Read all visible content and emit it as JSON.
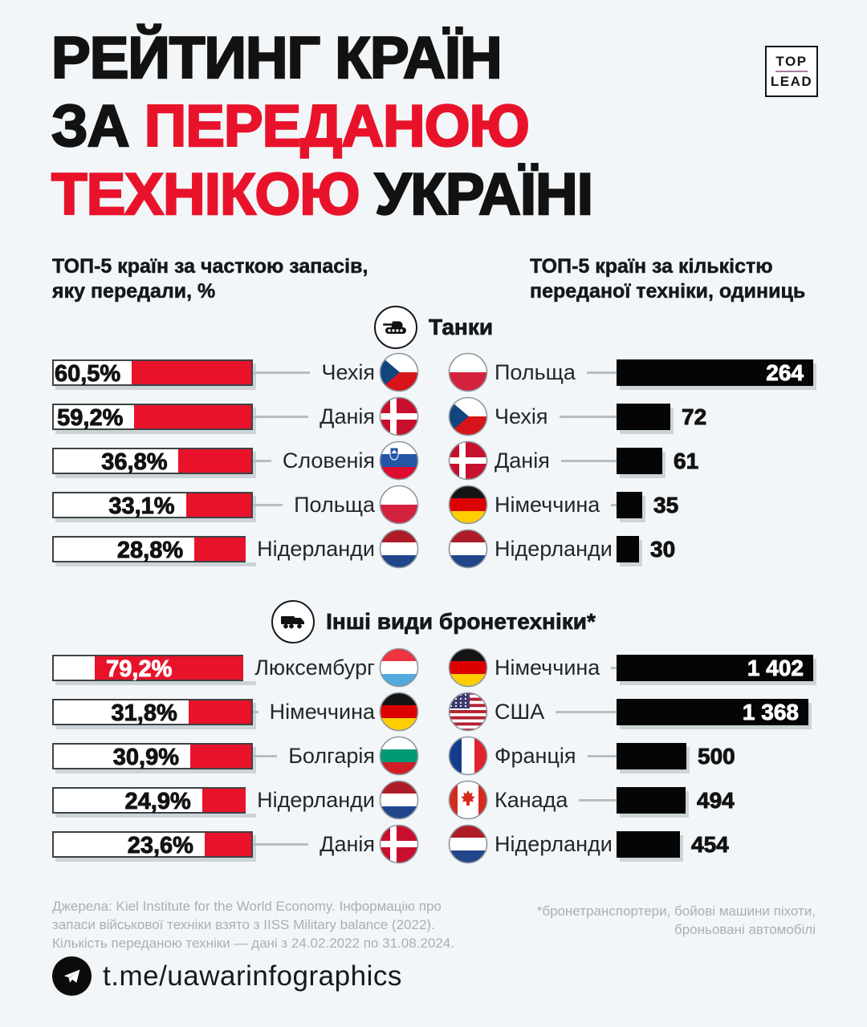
{
  "page": {
    "background": "#F2F6F8",
    "accent_red": "#E8132B",
    "bar_black": "#050505"
  },
  "title": {
    "line1": "РЕЙТИНГ КРАЇН",
    "line2_black": "ЗА ",
    "line2_red": "ПЕРЕДАНОЮ",
    "line3_red": "ТЕХНІКОЮ ",
    "line3_black": "УКРАЇНІ"
  },
  "logo": {
    "top": "TOP",
    "bottom": "LEAD"
  },
  "col_headers": {
    "left_line1": "ТОП-5 країн за часткою запасів,",
    "left_line2": "яку передали, %",
    "right_line1": "ТОП-5 країн за кількістю",
    "right_line2": "переданої техніки, одиниць"
  },
  "sections": [
    {
      "title": "Танки",
      "icon": "tank-icon",
      "share": [
        {
          "country": "Чехія",
          "flag": "cz",
          "pct": "60,5%",
          "value": 60.5
        },
        {
          "country": "Данія",
          "flag": "dk",
          "pct": "59,2%",
          "value": 59.2
        },
        {
          "country": "Словенія",
          "flag": "si",
          "pct": "36,8%",
          "value": 36.8
        },
        {
          "country": "Польща",
          "flag": "pl",
          "pct": "33,1%",
          "value": 33.1
        },
        {
          "country": "Нідерланди",
          "flag": "nl",
          "pct": "28,8%",
          "value": 28.8
        }
      ],
      "units": [
        {
          "country": "Польща",
          "flag": "pl",
          "label": "264",
          "value": 264
        },
        {
          "country": "Чехія",
          "flag": "cz",
          "label": "72",
          "value": 72
        },
        {
          "country": "Данія",
          "flag": "dk",
          "label": "61",
          "value": 61
        },
        {
          "country": "Німеччина",
          "flag": "de",
          "label": "35",
          "value": 35
        },
        {
          "country": "Нідерланди",
          "flag": "nl",
          "label": "30",
          "value": 30
        }
      ]
    },
    {
      "title": "Інші види бронетехніки*",
      "icon": "truck-icon",
      "share": [
        {
          "country": "Люксембург",
          "flag": "lu",
          "pct": "79,2%",
          "value": 79.2
        },
        {
          "country": "Німеччина",
          "flag": "de",
          "pct": "31,8%",
          "value": 31.8
        },
        {
          "country": "Болгарія",
          "flag": "bg",
          "pct": "30,9%",
          "value": 30.9
        },
        {
          "country": "Нідерланди",
          "flag": "nl",
          "pct": "24,9%",
          "value": 24.9
        },
        {
          "country": "Данія",
          "flag": "dk",
          "pct": "23,6%",
          "value": 23.6
        }
      ],
      "units": [
        {
          "country": "Німеччина",
          "flag": "de",
          "label": "1 402",
          "value": 1402
        },
        {
          "country": "США",
          "flag": "us",
          "label": "1 368",
          "value": 1368
        },
        {
          "country": "Франція",
          "flag": "fr",
          "label": "500",
          "value": 500
        },
        {
          "country": "Канада",
          "flag": "ca",
          "label": "494",
          "value": 494
        },
        {
          "country": "Нідерланди",
          "flag": "nl",
          "label": "454",
          "value": 454
        }
      ]
    }
  ],
  "footer": {
    "sources_line1": "Джерела: Kiel Institute for the World Economy. Інформацію про",
    "sources_line2": "запаси військової техніки взято з IISS Military balance (2022).",
    "sources_line3": "Кількість переданою техніки — дані з 24.02.2022 по 31.08.2024.",
    "footnote_line1": "*бронетранспортери, бойові машини піхоти,",
    "footnote_line2": "броньовані автомобілі",
    "telegram": "t.me/uawarinfographics"
  },
  "chart_data": [
    {
      "type": "bar",
      "title": "Танки — частка запасів, яку передали, %",
      "categories": [
        "Чехія",
        "Данія",
        "Словенія",
        "Польща",
        "Нідерланди"
      ],
      "values": [
        60.5,
        59.2,
        36.8,
        33.1,
        28.8
      ],
      "xlabel": "",
      "ylabel": "%",
      "ylim": [
        0,
        100
      ]
    },
    {
      "type": "bar",
      "title": "Танки — кількість переданої техніки, одиниць",
      "categories": [
        "Польща",
        "Чехія",
        "Данія",
        "Німеччина",
        "Нідерланди"
      ],
      "values": [
        264,
        72,
        61,
        35,
        30
      ],
      "xlabel": "",
      "ylabel": "одиниць",
      "ylim": [
        0,
        264
      ]
    },
    {
      "type": "bar",
      "title": "Інші види бронетехніки — частка запасів, яку передали, %",
      "categories": [
        "Люксембург",
        "Німеччина",
        "Болгарія",
        "Нідерланди",
        "Данія"
      ],
      "values": [
        79.2,
        31.8,
        30.9,
        24.9,
        23.6
      ],
      "xlabel": "",
      "ylabel": "%",
      "ylim": [
        0,
        100
      ]
    },
    {
      "type": "bar",
      "title": "Інші види бронетехніки — кількість переданої техніки, одиниць",
      "categories": [
        "Німеччина",
        "США",
        "Франція",
        "Канада",
        "Нідерланди"
      ],
      "values": [
        1402,
        1368,
        500,
        494,
        454
      ],
      "xlabel": "",
      "ylabel": "одиниць",
      "ylim": [
        0,
        1402
      ]
    }
  ]
}
